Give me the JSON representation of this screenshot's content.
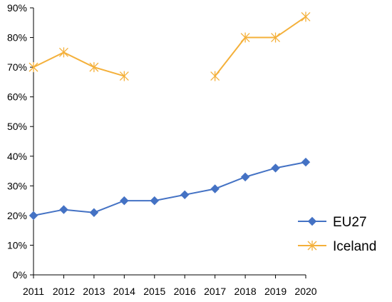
{
  "chart_data": {
    "type": "line",
    "title": "",
    "xlabel": "",
    "ylabel": "",
    "categories": [
      "2011",
      "2012",
      "2013",
      "2014",
      "2015",
      "2016",
      "2017",
      "2018",
      "2019",
      "2020"
    ],
    "ylim": [
      0,
      90
    ],
    "yticks": [
      "0%",
      "10%",
      "20%",
      "30%",
      "40%",
      "50%",
      "60%",
      "70%",
      "80%",
      "90%"
    ],
    "grid": false,
    "legend_position": "bottom-right",
    "series": [
      {
        "name": "EU27",
        "color": "#4472c4",
        "marker": "diamond",
        "values": [
          20,
          22,
          21,
          25,
          25,
          27,
          29,
          33,
          36,
          38
        ]
      },
      {
        "name": "Iceland",
        "color": "#f4b03a",
        "marker": "asterisk",
        "values": [
          70,
          75,
          70,
          67,
          null,
          null,
          67,
          80,
          80,
          87
        ]
      }
    ]
  }
}
